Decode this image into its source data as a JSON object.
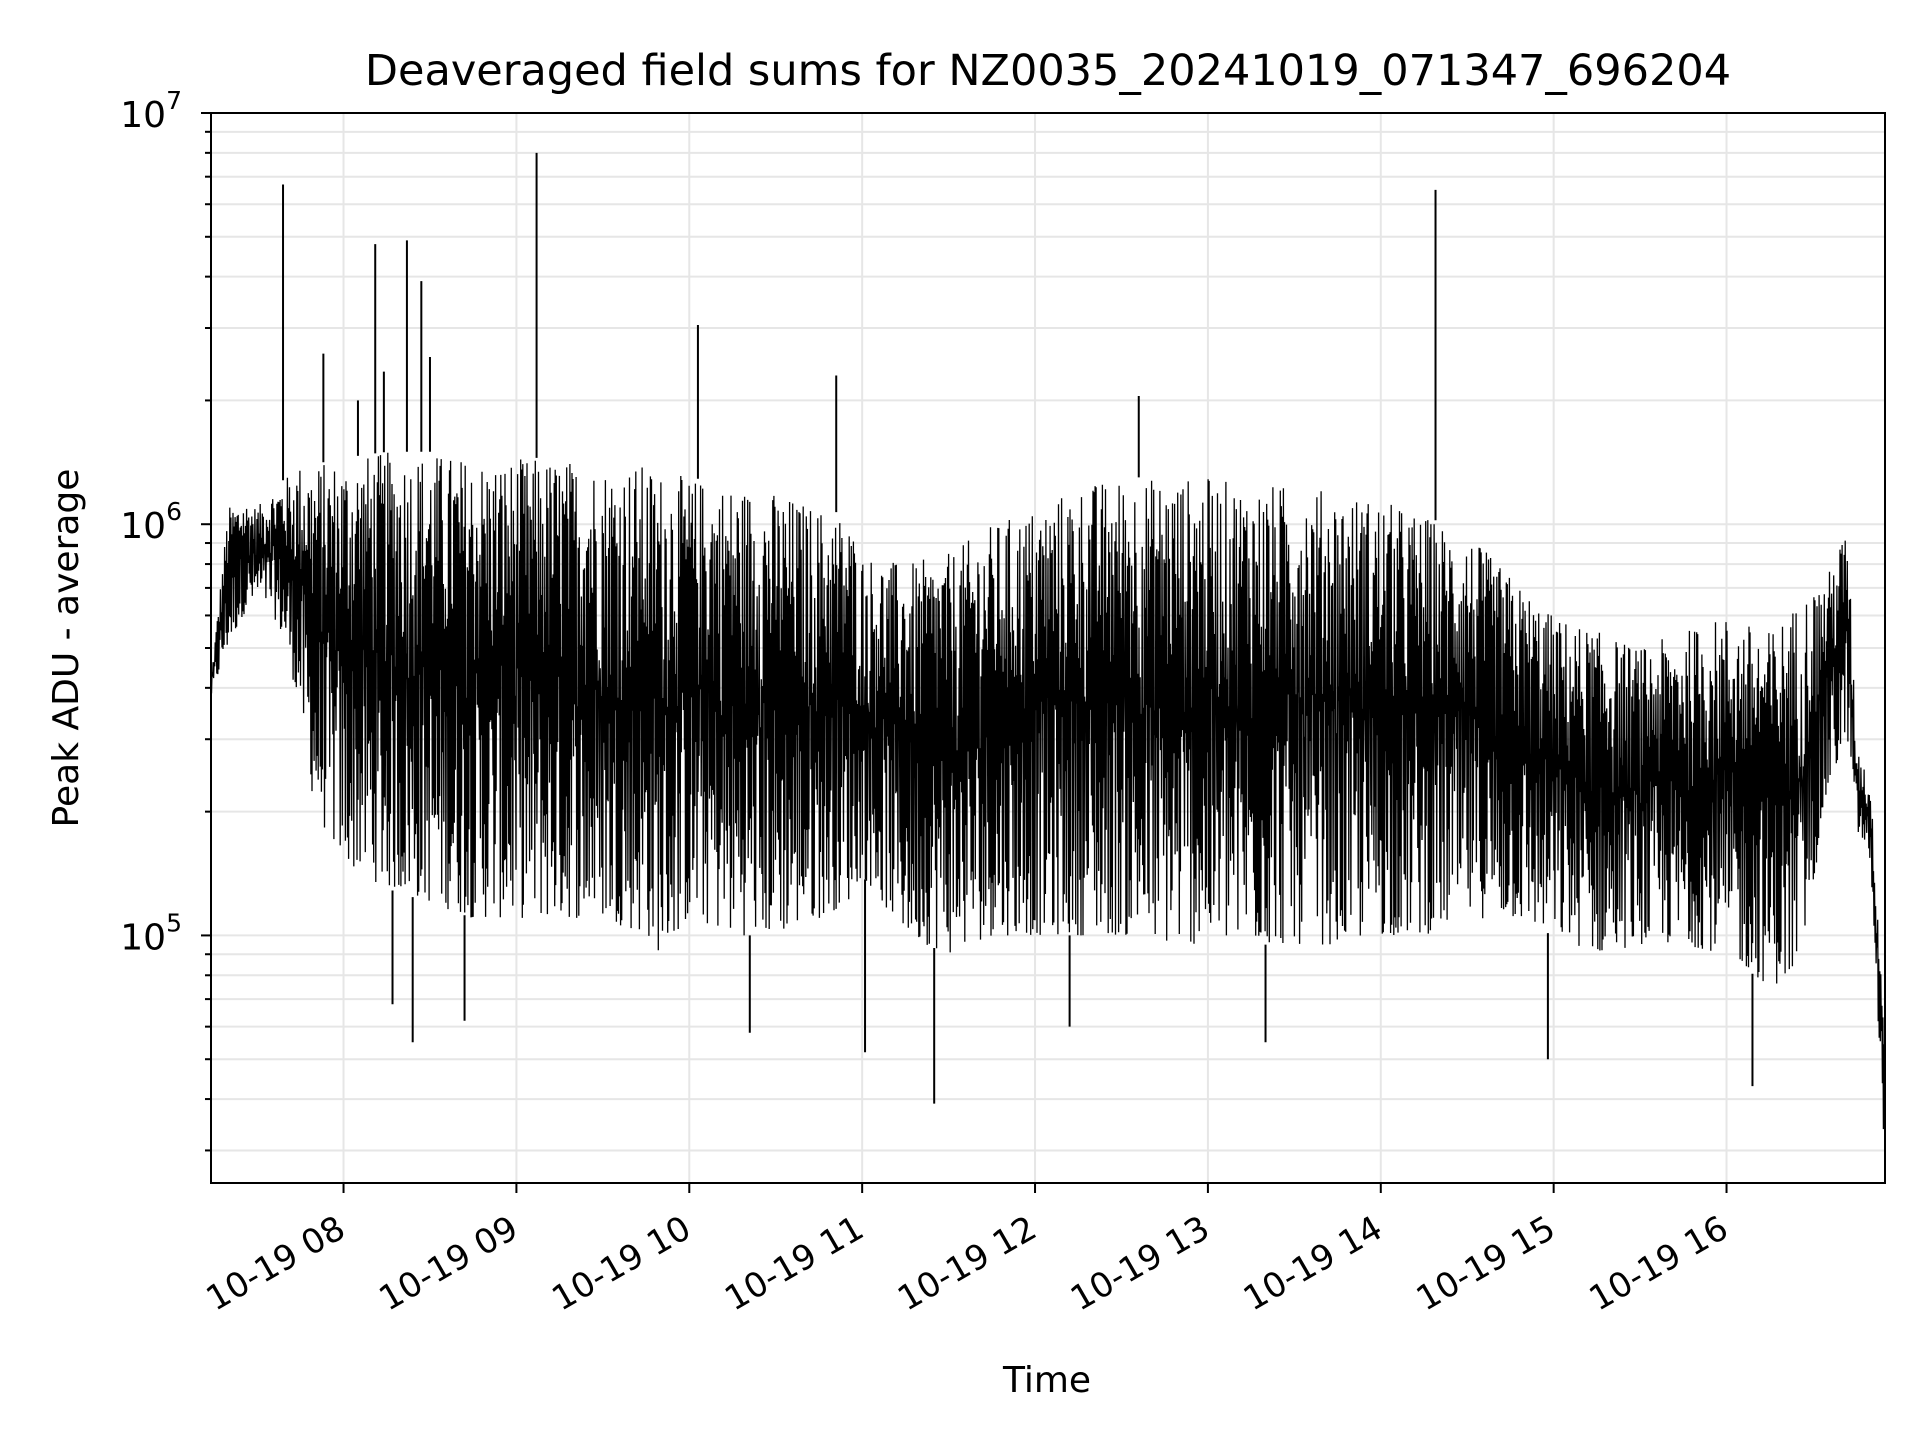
{
  "chart_data": {
    "type": "line",
    "title": "Deaveraged field sums for NZ0035_20241019_071347_696204",
    "xlabel": "Time",
    "ylabel": "Peak ADU - average",
    "yscale": "log",
    "ylim": [
      25000,
      10000000
    ],
    "xlim": [
      "2024-10-19 07:14",
      "2024-10-19 16:55"
    ],
    "grid": true,
    "line_color": "#000000",
    "grid_color": "#e6e6e6",
    "x_ticks": [
      {
        "label": "10-19 08",
        "time": "2024-10-19 08:00"
      },
      {
        "label": "10-19 09",
        "time": "2024-10-19 09:00"
      },
      {
        "label": "10-19 10",
        "time": "2024-10-19 10:00"
      },
      {
        "label": "10-19 11",
        "time": "2024-10-19 11:00"
      },
      {
        "label": "10-19 12",
        "time": "2024-10-19 12:00"
      },
      {
        "label": "10-19 13",
        "time": "2024-10-19 13:00"
      },
      {
        "label": "10-19 14",
        "time": "2024-10-19 14:00"
      },
      {
        "label": "10-19 15",
        "time": "2024-10-19 15:00"
      },
      {
        "label": "10-19 16",
        "time": "2024-10-19 16:00"
      }
    ],
    "y_ticks": [
      {
        "base": "10",
        "exp": "5",
        "value": 100000
      },
      {
        "base": "10",
        "exp": "6",
        "value": 1000000
      },
      {
        "base": "10",
        "exp": "7",
        "value": 10000000
      }
    ],
    "series": [
      {
        "envelope": {
          "time": [
            "2024-10-19 07:14",
            "2024-10-19 07:20",
            "2024-10-19 07:25",
            "2024-10-19 07:30",
            "2024-10-19 07:35",
            "2024-10-19 07:40",
            "2024-10-19 07:45",
            "2024-10-19 07:50",
            "2024-10-19 08:00",
            "2024-10-19 08:15",
            "2024-10-19 08:30",
            "2024-10-19 08:45",
            "2024-10-19 09:00",
            "2024-10-19 09:15",
            "2024-10-19 09:30",
            "2024-10-19 09:45",
            "2024-10-19 09:50",
            "2024-10-19 10:00",
            "2024-10-19 10:15",
            "2024-10-19 10:30",
            "2024-10-19 10:45",
            "2024-10-19 10:55",
            "2024-10-19 11:00",
            "2024-10-19 11:15",
            "2024-10-19 11:30",
            "2024-10-19 11:45",
            "2024-10-19 12:00",
            "2024-10-19 12:15",
            "2024-10-19 12:30",
            "2024-10-19 12:45",
            "2024-10-19 13:00",
            "2024-10-19 13:15",
            "2024-10-19 13:30",
            "2024-10-19 13:45",
            "2024-10-19 14:00",
            "2024-10-19 14:15",
            "2024-10-19 14:30",
            "2024-10-19 14:45",
            "2024-10-19 15:00",
            "2024-10-19 15:15",
            "2024-10-19 15:30",
            "2024-10-19 15:45",
            "2024-10-19 16:00",
            "2024-10-19 16:15",
            "2024-10-19 16:25",
            "2024-10-19 16:35",
            "2024-10-19 16:42",
            "2024-10-19 16:45",
            "2024-10-19 16:50",
            "2024-10-19 16:55"
          ],
          "low": [
            380000,
            500000,
            600000,
            650000,
            620000,
            500000,
            350000,
            200000,
            150000,
            130000,
            120000,
            110000,
            110000,
            110000,
            110000,
            100000,
            90000,
            110000,
            100000,
            100000,
            110000,
            120000,
            140000,
            100000,
            90000,
            100000,
            100000,
            100000,
            100000,
            95000,
            95000,
            95000,
            95000,
            95000,
            100000,
            100000,
            110000,
            110000,
            100000,
            90000,
            95000,
            95000,
            90000,
            75000,
            80000,
            220000,
            300000,
            180000,
            150000,
            28000
          ],
          "high": [
            420000,
            1100000,
            1150000,
            1100000,
            1200000,
            1300000,
            1400000,
            1400000,
            1450000,
            1500000,
            1500000,
            1450000,
            1450000,
            1450000,
            1400000,
            1400000,
            1350000,
            1300000,
            1250000,
            1200000,
            1100000,
            1050000,
            850000,
            800000,
            850000,
            1000000,
            1100000,
            1250000,
            1300000,
            1300000,
            1300000,
            1250000,
            1250000,
            1200000,
            1150000,
            1050000,
            950000,
            750000,
            600000,
            550000,
            500000,
            550000,
            600000,
            550000,
            650000,
            750000,
            1000000,
            300000,
            230000,
            60000
          ]
        }
      }
    ],
    "spikes": [
      {
        "time": "2024-10-19 07:39",
        "value": 6700000
      },
      {
        "time": "2024-10-19 07:53",
        "value": 2600000
      },
      {
        "time": "2024-10-19 08:05",
        "value": 2000000
      },
      {
        "time": "2024-10-19 08:11",
        "value": 4800000
      },
      {
        "time": "2024-10-19 08:14",
        "value": 2350000
      },
      {
        "time": "2024-10-19 08:22",
        "value": 4900000
      },
      {
        "time": "2024-10-19 08:27",
        "value": 3900000
      },
      {
        "time": "2024-10-19 08:30",
        "value": 2550000
      },
      {
        "time": "2024-10-19 09:07",
        "value": 8000000
      },
      {
        "time": "2024-10-19 10:03",
        "value": 3050000
      },
      {
        "time": "2024-10-19 10:51",
        "value": 2300000
      },
      {
        "time": "2024-10-19 12:36",
        "value": 2050000
      },
      {
        "time": "2024-10-19 14:19",
        "value": 6500000
      }
    ],
    "dips": [
      {
        "time": "2024-10-19 08:17",
        "value": 68000
      },
      {
        "time": "2024-10-19 08:24",
        "value": 55000
      },
      {
        "time": "2024-10-19 08:42",
        "value": 62000
      },
      {
        "time": "2024-10-19 10:21",
        "value": 58000
      },
      {
        "time": "2024-10-19 11:01",
        "value": 52000
      },
      {
        "time": "2024-10-19 11:25",
        "value": 39000
      },
      {
        "time": "2024-10-19 12:12",
        "value": 60000
      },
      {
        "time": "2024-10-19 13:20",
        "value": 55000
      },
      {
        "time": "2024-10-19 14:58",
        "value": 50000
      },
      {
        "time": "2024-10-19 16:09",
        "value": 43000
      },
      {
        "time": "2024-10-19 16:55",
        "value": 28000
      }
    ]
  }
}
